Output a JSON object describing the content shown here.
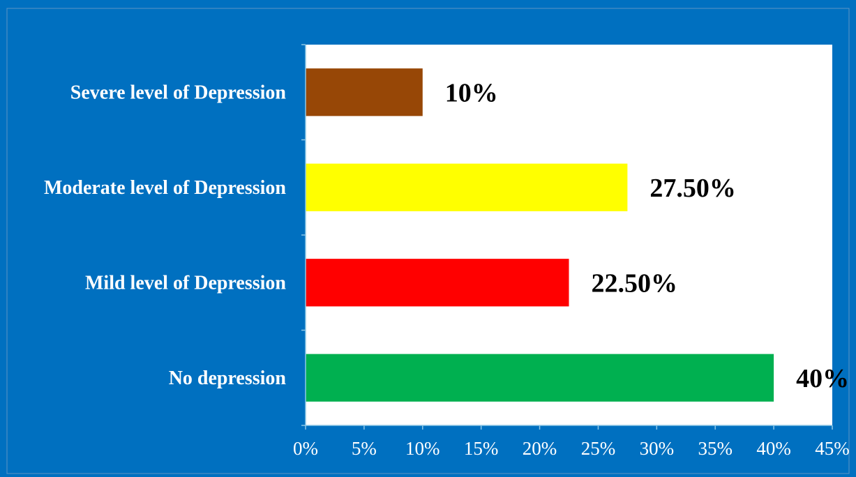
{
  "chart_data": {
    "type": "bar",
    "orientation": "horizontal",
    "title": "",
    "xlabel": "",
    "ylabel": "",
    "categories": [
      "Severe level of Depression",
      "Moderate level of Depression",
      "Mild level of Depression",
      "No depression"
    ],
    "values": [
      10,
      27.5,
      22.5,
      40
    ],
    "data_labels": [
      "10%",
      "27.50%",
      "22.50%",
      "40%"
    ],
    "bar_colors": [
      "#974706",
      "#ffff00",
      "#ff0000",
      "#00b050"
    ],
    "xlim": [
      0,
      45
    ],
    "x_ticks": [
      0,
      5,
      10,
      15,
      20,
      25,
      30,
      35,
      40,
      45
    ],
    "x_tick_labels": [
      "0%",
      "5%",
      "10%",
      "15%",
      "20%",
      "25%",
      "30%",
      "35%",
      "40%",
      "45%"
    ],
    "grid": false,
    "legend": "none",
    "colors": {
      "background": "#0070c0",
      "plot_area": "#ffffff",
      "axis": "#8ec7e6",
      "category_text": "#ffffff",
      "data_label_text": "#000000"
    }
  }
}
